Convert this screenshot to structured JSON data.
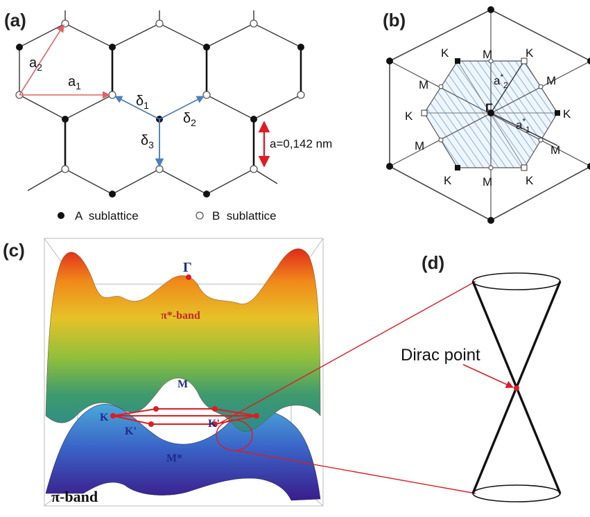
{
  "panels": {
    "a": {
      "label": "(a)",
      "vectors": {
        "a2": "a",
        "a2_sub": "2",
        "a1": "a",
        "a1_sub": "1",
        "d1": "δ",
        "d1_sub": "1",
        "d2": "δ",
        "d2_sub": "2",
        "d3": "δ",
        "d3_sub": "3"
      },
      "bond_length": "a=0,142 nm",
      "legend": {
        "a_text": "A  sublattice",
        "b_text": "B  sublattice"
      }
    },
    "b": {
      "label": "(b)",
      "points": {
        "gamma": "Γ",
        "k": "K",
        "kp": "K",
        "m": "M",
        "mp": "M"
      },
      "recip": {
        "a2": "a",
        "a2_sup": "*",
        "a2_sub": "2",
        "a1": "a",
        "a1_sup": "*",
        "a1_sub": "1"
      }
    },
    "c": {
      "label": "(c)",
      "gamma": "Γ",
      "pi_star": "π*-band",
      "pi": "π-band",
      "m": "M",
      "m_star": "M*",
      "k": "K",
      "k_prime": "K'"
    },
    "d": {
      "label": "(d)",
      "dirac": "Dirac point"
    }
  },
  "colors": {
    "vector_red": "#e06060",
    "delta_blue": "#4a7fc0",
    "hatch_blue": "#6aa0d8",
    "accent_red": "#dd1c24",
    "label_blue": "#1d2a8c"
  }
}
